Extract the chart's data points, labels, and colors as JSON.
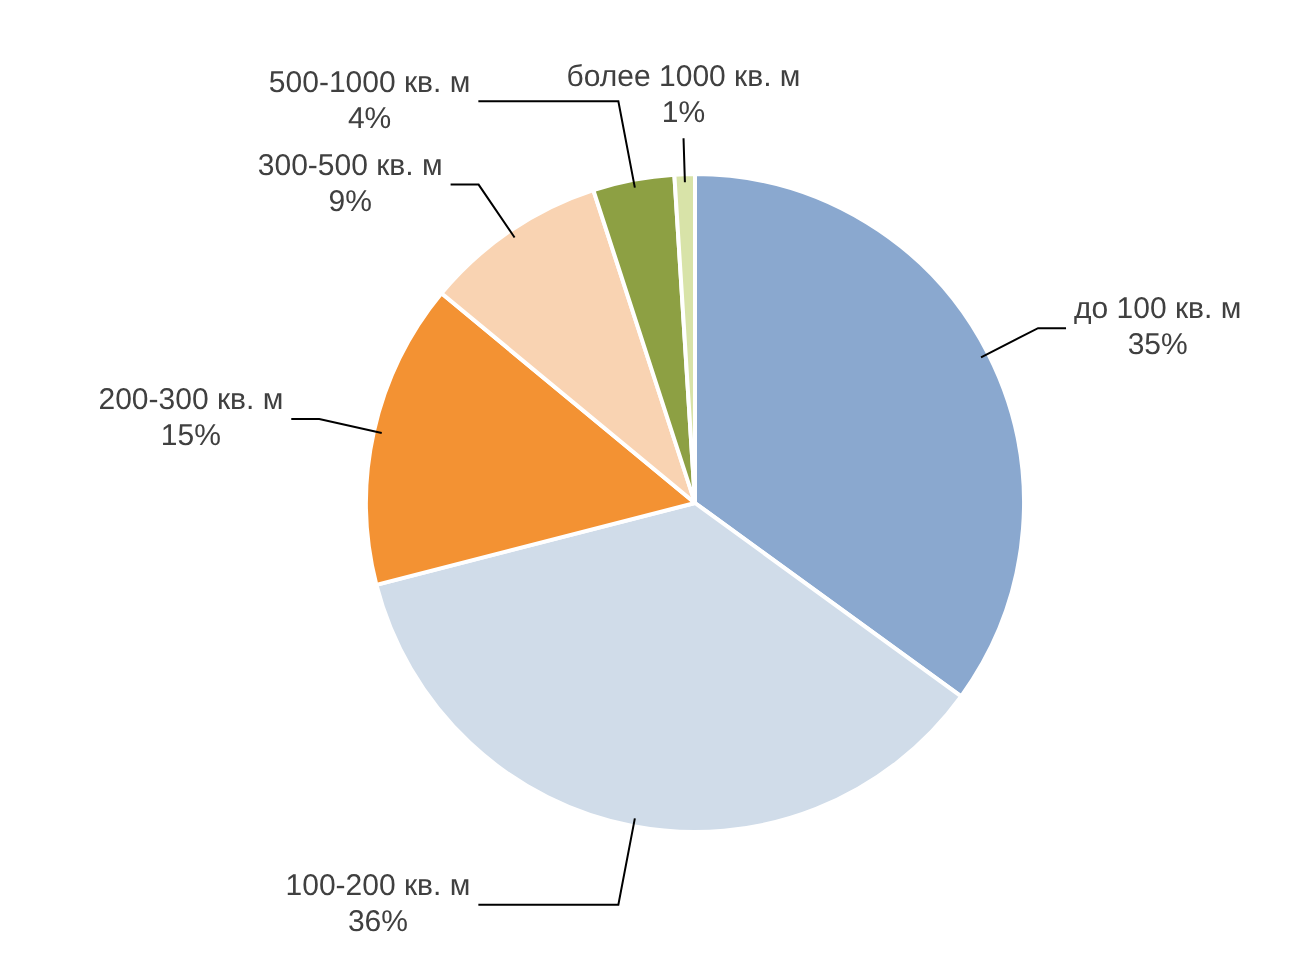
{
  "chart_data": {
    "type": "pie",
    "categories": [
      "до 100 кв. м",
      "100-200 кв. м",
      "200-300 кв. м",
      "300-500 кв. м",
      "500-1000 кв. м",
      "более 1000 кв. м"
    ],
    "values": [
      35,
      36,
      15,
      9,
      4,
      1
    ],
    "colors": [
      "#8aa8cf",
      "#d0dce9",
      "#f39233",
      "#f9d3b2",
      "#8da043",
      "#d8e3a8"
    ],
    "value_labels": [
      "35%",
      "36%",
      "15%",
      "9%",
      "4%",
      "1%"
    ],
    "legend": false
  }
}
